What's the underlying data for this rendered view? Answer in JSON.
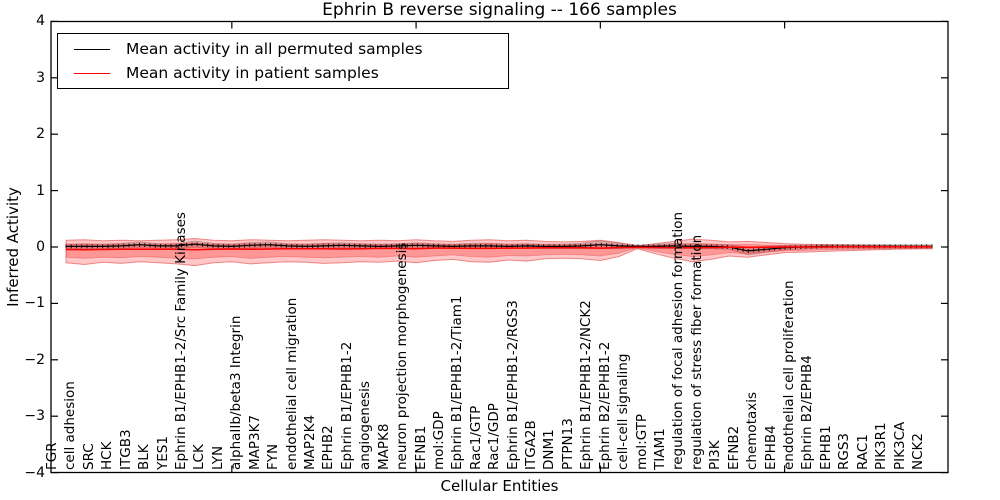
{
  "chart_data": {
    "type": "line",
    "title": "Ephrin B reverse signaling -- 166 samples",
    "xlabel": "Cellular Entities",
    "ylabel": "Inferred Activity",
    "ylim": [
      -4,
      4
    ],
    "y_tick_values": [
      4,
      3,
      2,
      1,
      0,
      -1,
      -2,
      -3,
      -4
    ],
    "y_tick_labels": [
      "4",
      "3",
      "2",
      "1",
      "0",
      "−1",
      "−2",
      "−3",
      "−4"
    ],
    "grid": false,
    "legend_position": "upper left",
    "categories": [
      "FGR",
      "cell adhesion",
      "SRC",
      "HCK",
      "ITGB3",
      "BLK",
      "YES1",
      "Ephrin B1/EPHB1-2/Src Family Kinases",
      "LCK",
      "LYN",
      "alphaIIb/beta3 Integrin",
      "MAP3K7",
      "FYN",
      "endothelial cell migration",
      "MAP2K4",
      "EPHB2",
      "Ephrin B1/EPHB1-2",
      "angiogenesis",
      "MAPK8",
      "neuron projection morphogenesis",
      "EFNB1",
      "mol:GDP",
      "Ephrin B1/EPHB1-2/Tiam1",
      "Rac1/GTP",
      "Rac1/GDP",
      "Ephrin B1/EPHB1-2/RGS3",
      "ITGA2B",
      "DNM1",
      "PTPN13",
      "Ephrin B1/EPHB1-2/NCK2",
      "Ephrin B2/EPHB1-2",
      "cell-cell signaling",
      "mol:GTP",
      "TIAM1",
      "regulation of focal adhesion formation",
      "regulation of stress fiber formation",
      "PI3K",
      "EFNB2",
      "chemotaxis",
      "EPHB4",
      "endothelial cell proliferation",
      "Ephrin B2/EPHB4",
      "EPHB1",
      "RGS3",
      "RAC1",
      "PIK3R1",
      "PIK3CA",
      "NCK2"
    ],
    "series": [
      {
        "name": "Mean activity in all permuted samples",
        "color": "#000000",
        "values": [
          0.01,
          0.01,
          0.01,
          0.02,
          0.04,
          0.02,
          0.02,
          0.05,
          0.02,
          0.01,
          0.03,
          0.04,
          0.02,
          0.01,
          0.02,
          0.03,
          0.02,
          0.01,
          0.02,
          0.03,
          0.02,
          0.01,
          0.02,
          0.02,
          0.01,
          0.02,
          0.01,
          0.01,
          0.02,
          0.04,
          0.02,
          0.01,
          0.01,
          0.02,
          0.01,
          0.01,
          0.0,
          -0.07,
          -0.04,
          -0.01,
          0.0,
          0.01,
          0.01,
          0.01,
          0.01,
          0.01,
          0.01,
          0.01
        ]
      },
      {
        "name": "Mean activity in patient samples",
        "color": "#ff0000",
        "values": [
          -0.045,
          -0.05,
          -0.045,
          -0.04,
          -0.04,
          -0.04,
          -0.04,
          -0.05,
          -0.04,
          -0.035,
          -0.04,
          -0.035,
          -0.03,
          -0.03,
          -0.03,
          -0.035,
          -0.03,
          -0.025,
          -0.025,
          -0.03,
          -0.02,
          -0.02,
          -0.025,
          -0.025,
          -0.02,
          -0.02,
          -0.015,
          -0.015,
          -0.015,
          -0.02,
          -0.01,
          -0.005,
          -0.01,
          -0.015,
          -0.01,
          -0.01,
          -0.005,
          -0.005,
          -0.005,
          0.0,
          0.0,
          0.0,
          0.005,
          0.005,
          0.005,
          0.005,
          0.005,
          0.005
        ]
      }
    ],
    "bands": {
      "band_color": "#ff0000",
      "permuted_band_color": "#808080",
      "patient_outer_upper": [
        0.12,
        0.13,
        0.11,
        0.12,
        0.11,
        0.12,
        0.13,
        0.15,
        0.12,
        0.11,
        0.13,
        0.12,
        0.11,
        0.12,
        0.13,
        0.12,
        0.11,
        0.12,
        0.11,
        0.13,
        0.11,
        0.1,
        0.12,
        0.13,
        0.11,
        0.12,
        0.1,
        0.09,
        0.1,
        0.12,
        0.08,
        0.02,
        0.06,
        0.1,
        0.14,
        0.12,
        0.09,
        0.1,
        0.08,
        0.06,
        0.05,
        0.045,
        0.04,
        0.035,
        0.03,
        0.025,
        0.02,
        0.02
      ],
      "patient_outer_lower": [
        -0.28,
        -0.31,
        -0.27,
        -0.29,
        -0.26,
        -0.28,
        -0.3,
        -0.33,
        -0.28,
        -0.26,
        -0.3,
        -0.28,
        -0.26,
        -0.27,
        -0.29,
        -0.28,
        -0.26,
        -0.27,
        -0.25,
        -0.28,
        -0.24,
        -0.22,
        -0.26,
        -0.27,
        -0.23,
        -0.25,
        -0.21,
        -0.2,
        -0.21,
        -0.24,
        -0.17,
        -0.03,
        -0.12,
        -0.2,
        -0.26,
        -0.22,
        -0.16,
        -0.18,
        -0.14,
        -0.1,
        -0.09,
        -0.08,
        -0.07,
        -0.06,
        -0.05,
        -0.04,
        -0.035,
        -0.03
      ],
      "patient_inner_upper": [
        0.05,
        0.06,
        0.05,
        0.05,
        0.05,
        0.05,
        0.06,
        0.07,
        0.05,
        0.05,
        0.06,
        0.05,
        0.05,
        0.05,
        0.06,
        0.05,
        0.05,
        0.05,
        0.05,
        0.06,
        0.05,
        0.045,
        0.05,
        0.06,
        0.05,
        0.05,
        0.045,
        0.04,
        0.045,
        0.05,
        0.035,
        0.01,
        0.027,
        0.045,
        0.063,
        0.054,
        0.04,
        0.045,
        0.036,
        0.027,
        0.023,
        0.02,
        0.018,
        0.016,
        0.014,
        0.011,
        0.009,
        0.009
      ],
      "patient_inner_lower": [
        -0.18,
        -0.2,
        -0.18,
        -0.19,
        -0.17,
        -0.18,
        -0.2,
        -0.21,
        -0.18,
        -0.17,
        -0.2,
        -0.18,
        -0.17,
        -0.18,
        -0.19,
        -0.18,
        -0.17,
        -0.18,
        -0.16,
        -0.18,
        -0.16,
        -0.14,
        -0.17,
        -0.18,
        -0.15,
        -0.16,
        -0.14,
        -0.13,
        -0.14,
        -0.16,
        -0.11,
        -0.015,
        -0.08,
        -0.13,
        -0.17,
        -0.14,
        -0.1,
        -0.12,
        -0.09,
        -0.065,
        -0.059,
        -0.052,
        -0.046,
        -0.039,
        -0.033,
        -0.026,
        -0.023,
        -0.02
      ],
      "permuted_half_width": [
        0.04,
        0.04,
        0.04,
        0.045,
        0.05,
        0.04,
        0.04,
        0.055,
        0.045,
        0.04,
        0.05,
        0.05,
        0.04,
        0.04,
        0.045,
        0.045,
        0.04,
        0.04,
        0.04,
        0.045,
        0.04,
        0.04,
        0.045,
        0.045,
        0.04,
        0.04,
        0.04,
        0.04,
        0.05,
        0.07,
        0.05,
        0.025,
        0.035,
        0.045,
        0.04,
        0.04,
        0.04,
        0.07,
        0.055,
        0.04,
        0.035,
        0.03,
        0.03,
        0.03,
        0.03,
        0.03,
        0.03,
        0.03
      ]
    }
  }
}
